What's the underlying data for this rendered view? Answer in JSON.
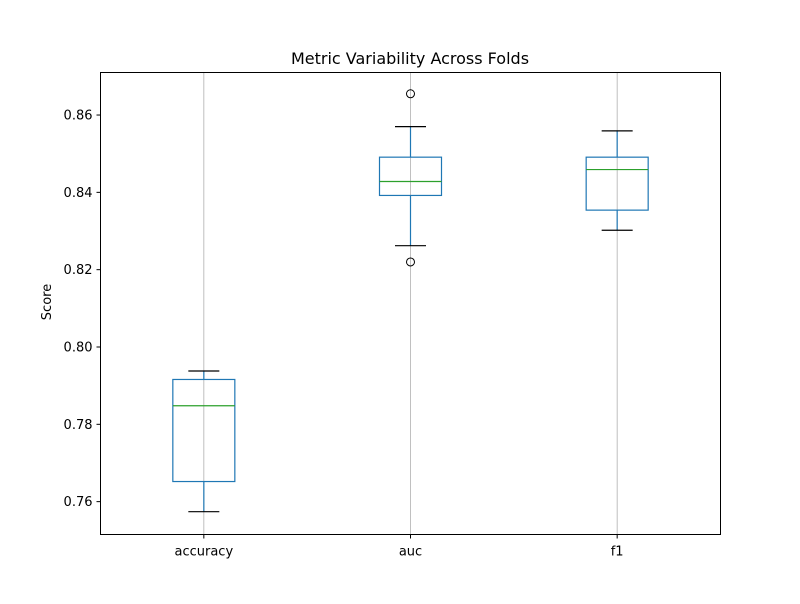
{
  "chart_data": {
    "type": "box",
    "title": "Metric Variability Across Folds",
    "xlabel": "",
    "ylabel": "Score",
    "categories": [
      "accuracy",
      "auc",
      "f1"
    ],
    "ylim": [
      0.7515,
      0.871
    ],
    "yticks": [
      0.76,
      0.78,
      0.8,
      0.82,
      0.84,
      0.86
    ],
    "ytick_labels": [
      "0.76",
      "0.78",
      "0.80",
      "0.82",
      "0.84",
      "0.86"
    ],
    "grid": {
      "x": true,
      "y": false
    },
    "boxes": [
      {
        "category": "accuracy",
        "whisker_low": 0.7574,
        "q1": 0.7652,
        "median": 0.7848,
        "q3": 0.7916,
        "whisker_high": 0.7938,
        "outliers": []
      },
      {
        "category": "auc",
        "whisker_low": 0.8262,
        "q1": 0.8392,
        "median": 0.8428,
        "q3": 0.8491,
        "whisker_high": 0.857,
        "outliers": [
          0.822,
          0.8655
        ]
      },
      {
        "category": "f1",
        "whisker_low": 0.8302,
        "q1": 0.8354,
        "median": 0.8459,
        "q3": 0.8491,
        "whisker_high": 0.8559,
        "outliers": []
      }
    ],
    "colors": {
      "box": "#1f77b4",
      "median": "#2ca02c",
      "whisker": "#1f77b4",
      "cap": "#000000",
      "outlier": "#000000",
      "grid": "#b0b0b0",
      "axes": "#000000"
    }
  }
}
